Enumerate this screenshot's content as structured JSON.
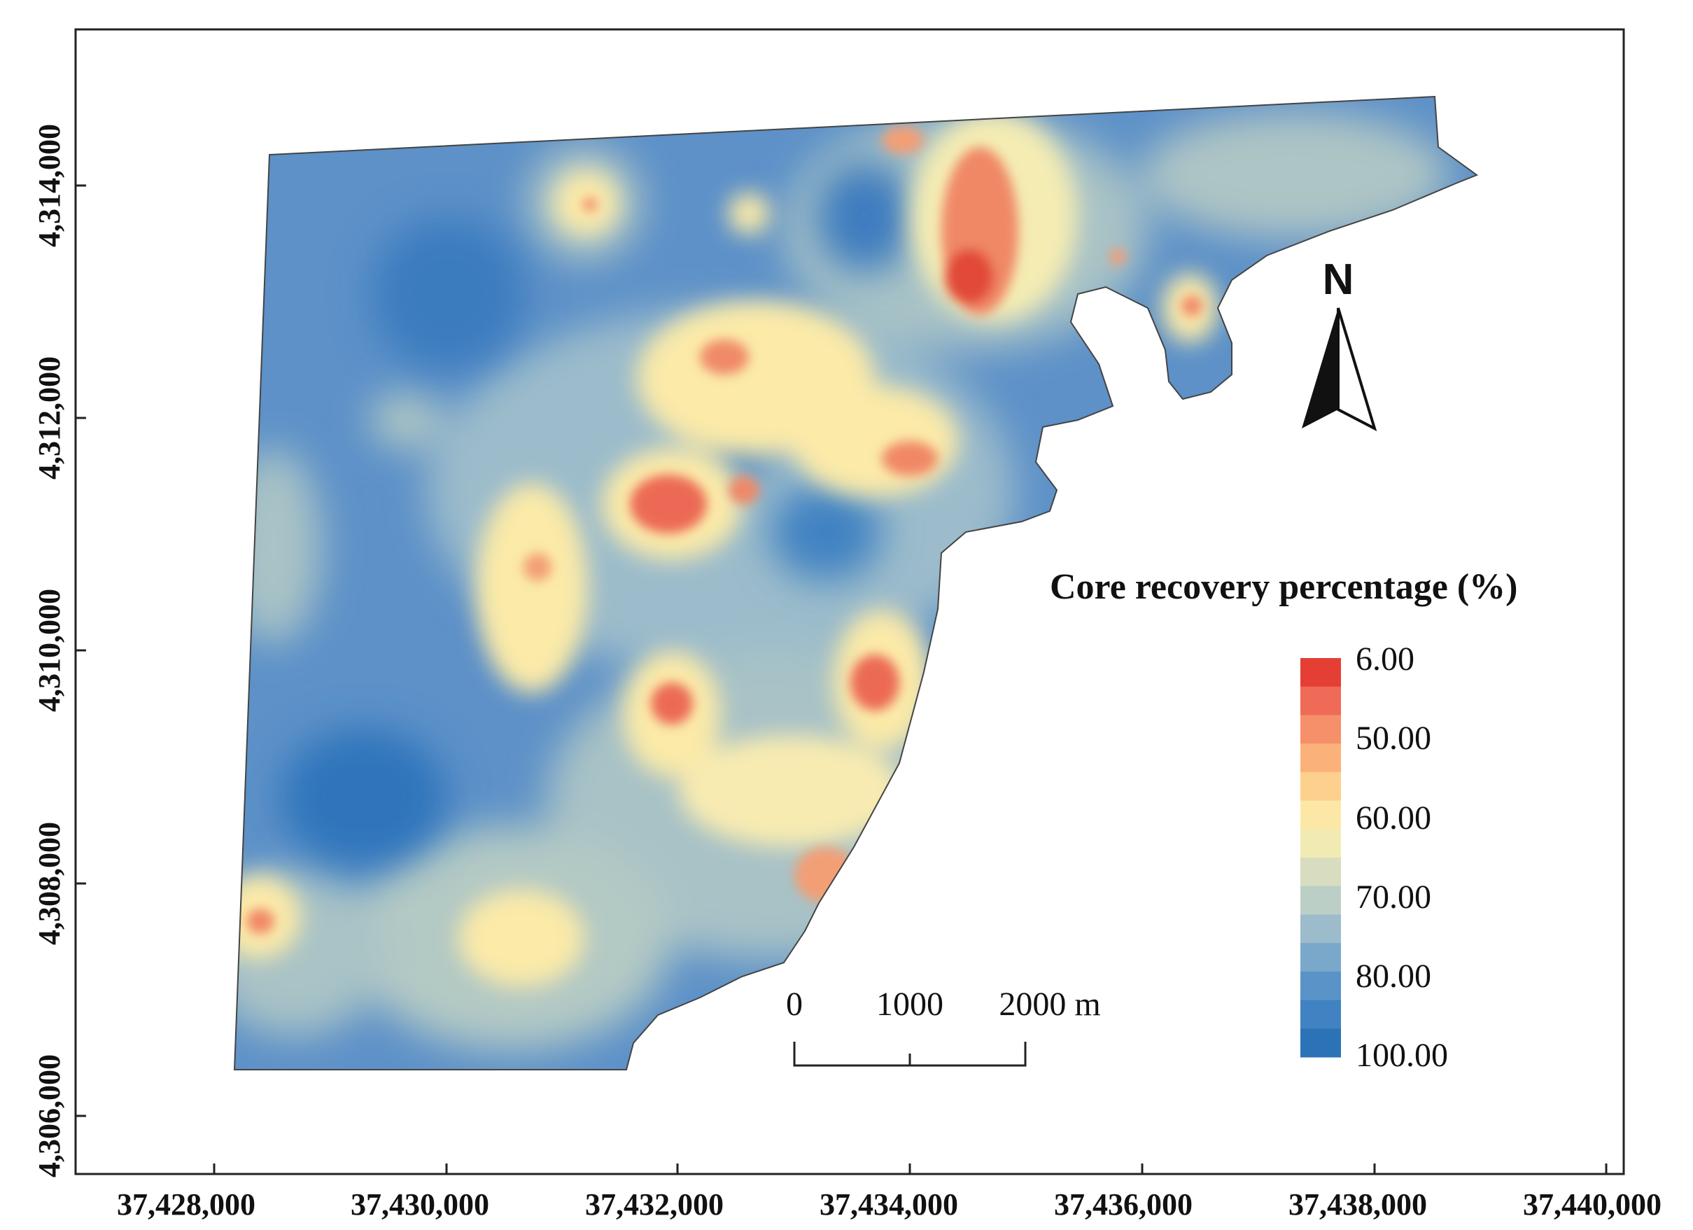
{
  "map": {
    "x_axis_ticks": [
      "37,428,000",
      "37,430,000",
      "37,432,000",
      "37,434,000",
      "37,436,000",
      "37,438,000",
      "37,440,000"
    ],
    "y_axis_ticks": [
      "4,314,000",
      "4,312,000",
      "4,310,000",
      "4,308,000",
      "4,306,000"
    ],
    "legend": {
      "title": "Core recovery percentage (%)",
      "labels": [
        "6.00",
        "50.00",
        "60.00",
        "70.00",
        "80.00",
        "100.00"
      ],
      "ramp_colors": [
        "#2c72b7",
        "#4182c2",
        "#5a93c7",
        "#7aa8ca",
        "#9cbccb",
        "#bccfc7",
        "#d8ddbf",
        "#f1ebb3",
        "#fde7a6",
        "#fdd08d",
        "#fbb27a",
        "#f6906a",
        "#ef6b57",
        "#e53e35"
      ]
    },
    "north_arrow": {
      "letter": "N"
    },
    "scale_bar": {
      "labels": [
        "0",
        "1000",
        "2000 m"
      ]
    },
    "colors": {
      "base_blue": "#5d91c8",
      "deep_blue": "#3d7cbf",
      "mid_green": "#a9c3c6",
      "yellow": "#fbeaa8",
      "orange": "#f6a97c",
      "red": "#e8543f"
    }
  }
}
